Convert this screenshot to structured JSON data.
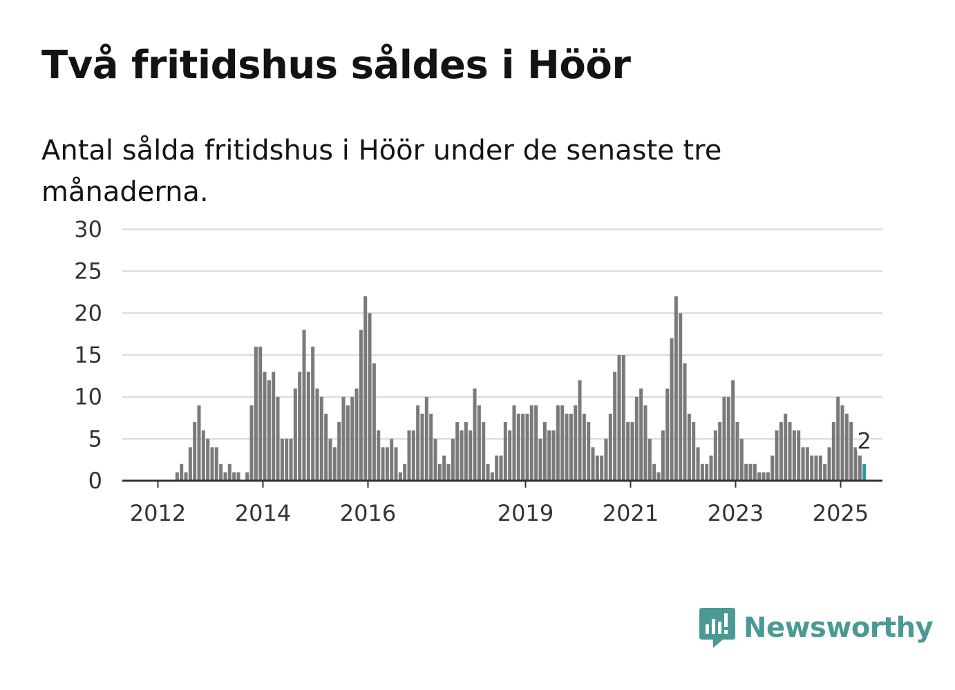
{
  "title": "Två fritidshus såldes i Höör",
  "subtitle": "Antal sålda fritidshus i Höör under de senaste tre månaderna.",
  "colors": {
    "bar": "#7a797c",
    "highlight": "#2a9d96",
    "grid": "#dddddd",
    "axis": "#333333",
    "brand": "#4a9a93"
  },
  "brand": {
    "name": "Newsworthy",
    "icon": "newsworthy-logo-icon"
  },
  "chart_data": {
    "type": "bar",
    "x_axis": "monthly, 2011-10 to 2025-02",
    "ylim": [
      0,
      30
    ],
    "yticks": [
      0,
      5,
      10,
      15,
      20,
      25,
      30
    ],
    "xticks": [
      "2012",
      "2014",
      "2016",
      "2019",
      "2021",
      "2023",
      "2025"
    ],
    "grid": true,
    "start": "2011-10",
    "values": [
      0,
      0,
      0,
      0,
      0,
      0,
      0,
      1,
      2,
      1,
      4,
      7,
      9,
      6,
      5,
      4,
      4,
      2,
      1,
      2,
      1,
      1,
      0,
      1,
      9,
      16,
      16,
      13,
      12,
      13,
      10,
      5,
      5,
      5,
      11,
      13,
      18,
      13,
      16,
      11,
      10,
      8,
      5,
      4,
      7,
      10,
      9,
      10,
      11,
      18,
      22,
      20,
      14,
      6,
      4,
      4,
      5,
      4,
      1,
      2,
      6,
      6,
      9,
      8,
      10,
      8,
      5,
      2,
      3,
      2,
      5,
      7,
      6,
      7,
      6,
      11,
      9,
      7,
      2,
      1,
      3,
      3,
      7,
      6,
      9,
      8,
      8,
      8,
      9,
      9,
      5,
      7,
      6,
      6,
      9,
      9,
      8,
      8,
      9,
      12,
      8,
      7,
      4,
      3,
      3,
      5,
      8,
      13,
      15,
      15,
      7,
      7,
      10,
      11,
      9,
      5,
      2,
      1,
      6,
      11,
      17,
      22,
      20,
      14,
      8,
      7,
      4,
      2,
      2,
      3,
      6,
      7,
      10,
      10,
      12,
      7,
      5,
      2,
      2,
      2,
      1,
      1,
      1,
      3,
      6,
      7,
      8,
      7,
      6,
      6,
      4,
      4,
      3,
      3,
      3,
      2,
      4,
      7,
      10,
      9,
      8,
      7,
      4,
      3,
      2
    ],
    "highlight_last": true,
    "annotation": {
      "text": "2"
    }
  }
}
